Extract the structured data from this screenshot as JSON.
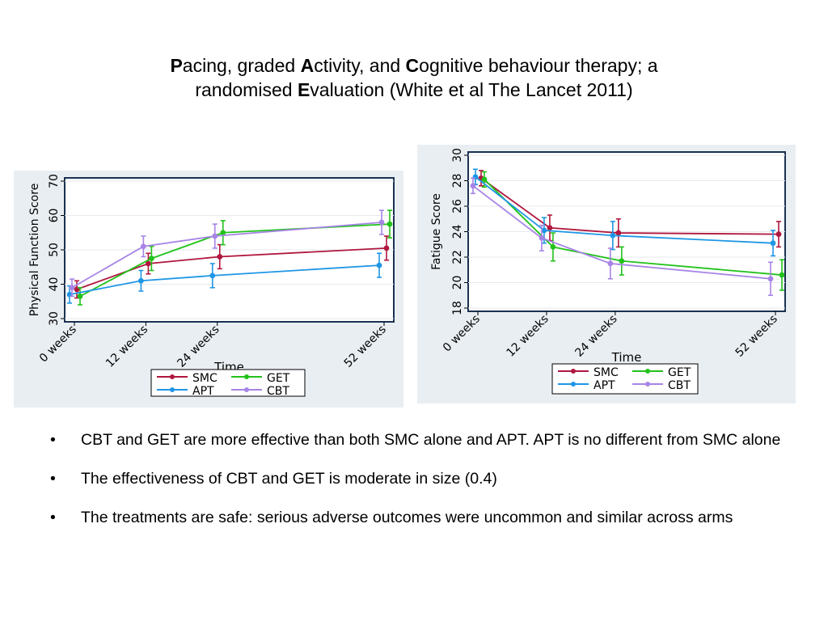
{
  "title": {
    "line1": [
      {
        "text": "P",
        "bold": true
      },
      {
        "text": "acing, graded ",
        "bold": false
      },
      {
        "text": "A",
        "bold": true
      },
      {
        "text": "ctivity, and ",
        "bold": false
      },
      {
        "text": "C",
        "bold": true
      },
      {
        "text": "ognitive behaviour therapy; a",
        "bold": false
      }
    ],
    "line2": [
      {
        "text": "randomised ",
        "bold": false
      },
      {
        "text": "E",
        "bold": true
      },
      {
        "text": "valuation (White et al The Lancet 2011)",
        "bold": false
      }
    ]
  },
  "colors": {
    "SMC": "#b0173e",
    "GET": "#22c21b",
    "APT": "#1e96e6",
    "CBT": "#a784e6",
    "panel_bg": "#e9eef2",
    "frame": "#1a3150"
  },
  "chart_data": [
    {
      "type": "line",
      "title": "",
      "xlabel": "Time",
      "ylabel": "Physical Function Score",
      "categories": [
        "0 weeks",
        "12 weeks",
        "24 weeks",
        "52 weeks"
      ],
      "x": [
        0,
        12,
        24,
        52
      ],
      "ylim": [
        30,
        70
      ],
      "yticks": [
        30,
        40,
        50,
        60,
        70
      ],
      "grid": true,
      "legend_position": "bottom",
      "series": [
        {
          "name": "SMC",
          "values": [
            38.5,
            46.0,
            48.0,
            50.5
          ],
          "err": [
            2.5,
            3.0,
            3.5,
            3.5
          ]
        },
        {
          "name": "GET",
          "values": [
            36.5,
            47.5,
            55.0,
            57.5
          ],
          "err": [
            2.5,
            3.5,
            3.5,
            4.0
          ]
        },
        {
          "name": "APT",
          "values": [
            37.0,
            41.0,
            42.5,
            45.5
          ],
          "err": [
            2.5,
            3.0,
            3.5,
            3.5
          ]
        },
        {
          "name": "CBT",
          "values": [
            39.0,
            51.0,
            54.0,
            58.0
          ],
          "err": [
            2.5,
            3.0,
            3.5,
            3.5
          ]
        }
      ]
    },
    {
      "type": "line",
      "title": "",
      "xlabel": "Time",
      "ylabel": "Fatigue Score",
      "categories": [
        "0 weeks",
        "12 weeks",
        "24 weeks",
        "52 weeks"
      ],
      "x": [
        0,
        12,
        24,
        52
      ],
      "ylim": [
        18,
        30
      ],
      "yticks": [
        18,
        20,
        22,
        24,
        26,
        28,
        30
      ],
      "grid": true,
      "legend_position": "bottom",
      "series": [
        {
          "name": "SMC",
          "values": [
            28.2,
            24.3,
            23.9,
            23.8
          ],
          "err": [
            0.6,
            1.0,
            1.1,
            1.0
          ]
        },
        {
          "name": "GET",
          "values": [
            28.1,
            22.8,
            21.7,
            20.6
          ],
          "err": [
            0.6,
            1.1,
            1.1,
            1.2
          ]
        },
        {
          "name": "APT",
          "values": [
            28.3,
            24.1,
            23.7,
            23.1
          ],
          "err": [
            0.6,
            1.0,
            1.1,
            1.0
          ]
        },
        {
          "name": "CBT",
          "values": [
            27.6,
            23.5,
            21.5,
            20.3
          ],
          "err": [
            0.6,
            1.0,
            1.2,
            1.3
          ]
        }
      ]
    }
  ],
  "bullets": [
    {
      "marker": "•",
      "text": "CBT and GET are more effective than both SMC alone and APT. APT is no different from SMC alone"
    },
    {
      "marker": "•",
      "text": "The effectiveness of CBT and GET is moderate in size  (0.4)"
    },
    {
      "marker": "•",
      "text": "The treatments are safe: serious adverse outcomes were uncommon and similar across arms"
    }
  ]
}
